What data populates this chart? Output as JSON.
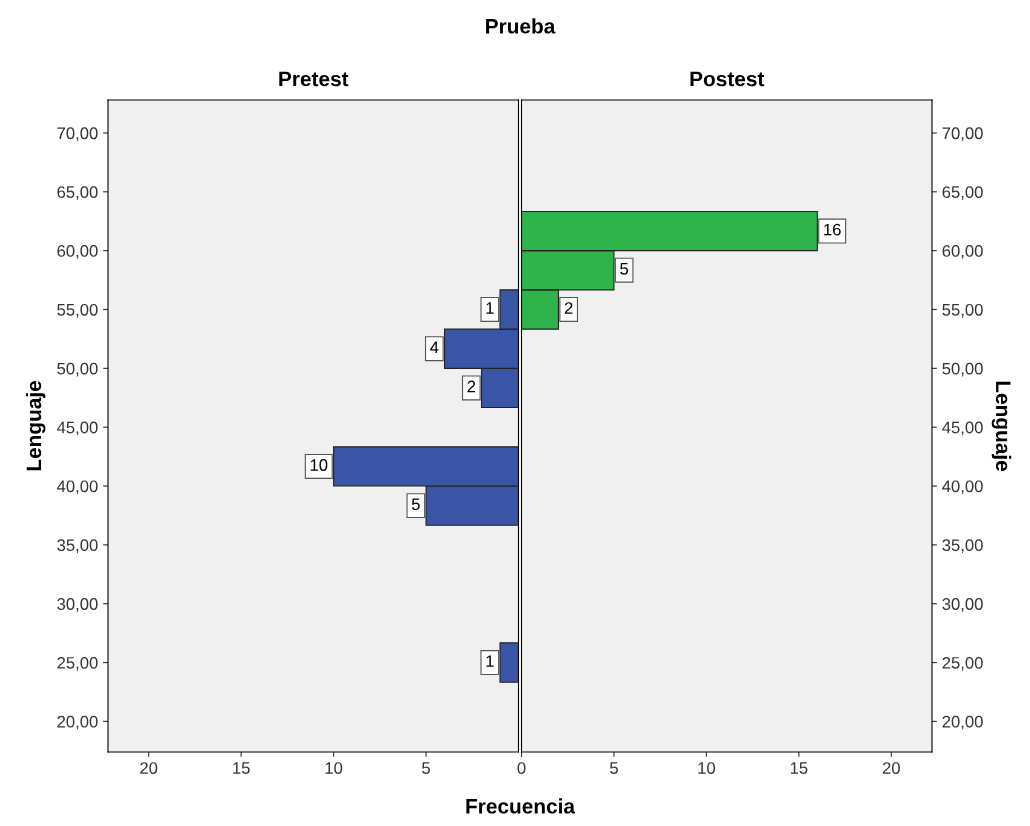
{
  "chart_data": [
    {
      "type": "histogram",
      "orientation": "horizontal",
      "title": "Pretest",
      "xlabel": "Frecuencia",
      "ylabel": "Lenguaje",
      "annotations": [
        "Prueba"
      ],
      "bins": [
        23.33,
        26.67,
        30,
        33.33,
        36.67,
        40,
        43.33,
        46.67,
        50,
        53.33,
        56.67,
        60,
        63.33
      ],
      "values": [
        1,
        0,
        0,
        0,
        5,
        10,
        0,
        2,
        4,
        1,
        0,
        0
      ],
      "value_labels": [
        "1",
        null,
        null,
        null,
        "5",
        "10",
        null,
        "2",
        "4",
        "1",
        null,
        null
      ],
      "color": "#3b55a6",
      "xlim": [
        22.2,
        0
      ],
      "xticks": [
        20,
        15,
        10,
        5
      ],
      "ylim": [
        17.4,
        72.8
      ],
      "yticks": [
        {
          "value": 20,
          "label": "20,00"
        },
        {
          "value": 25,
          "label": "25,00"
        },
        {
          "value": 30,
          "label": "30,00"
        },
        {
          "value": 35,
          "label": "35,00"
        },
        {
          "value": 40,
          "label": "40,00"
        },
        {
          "value": 45,
          "label": "45,00"
        },
        {
          "value": 50,
          "label": "50,00"
        },
        {
          "value": 55,
          "label": "55,00"
        },
        {
          "value": 60,
          "label": "60,00"
        },
        {
          "value": 65,
          "label": "65,00"
        },
        {
          "value": 70,
          "label": "70,00"
        }
      ],
      "grid": false,
      "legend": false
    },
    {
      "type": "histogram",
      "orientation": "horizontal",
      "title": "Postest",
      "ylabel": "Lenguaje",
      "bins": [
        23.33,
        26.67,
        30,
        33.33,
        36.67,
        40,
        43.33,
        46.67,
        50,
        53.33,
        56.67,
        60,
        63.33
      ],
      "values": [
        0,
        0,
        0,
        0,
        0,
        0,
        0,
        0,
        0,
        2,
        5,
        16
      ],
      "value_labels": [
        null,
        null,
        null,
        null,
        null,
        null,
        null,
        null,
        null,
        "2",
        "5",
        "16"
      ],
      "color": "#2fb34b",
      "xlim": [
        0,
        22.2
      ],
      "xticks": [
        0,
        5,
        10,
        15,
        20
      ],
      "ylim": [
        17.4,
        72.8
      ],
      "yticks": [
        {
          "value": 20,
          "label": "20,00"
        },
        {
          "value": 25,
          "label": "25,00"
        },
        {
          "value": 30,
          "label": "30,00"
        },
        {
          "value": 35,
          "label": "35,00"
        },
        {
          "value": 40,
          "label": "40,00"
        },
        {
          "value": 45,
          "label": "45,00"
        },
        {
          "value": 50,
          "label": "50,00"
        },
        {
          "value": 55,
          "label": "55,00"
        },
        {
          "value": 60,
          "label": "60,00"
        },
        {
          "value": 65,
          "label": "65,00"
        },
        {
          "value": 70,
          "label": "70,00"
        }
      ],
      "grid": false,
      "legend": false
    }
  ]
}
